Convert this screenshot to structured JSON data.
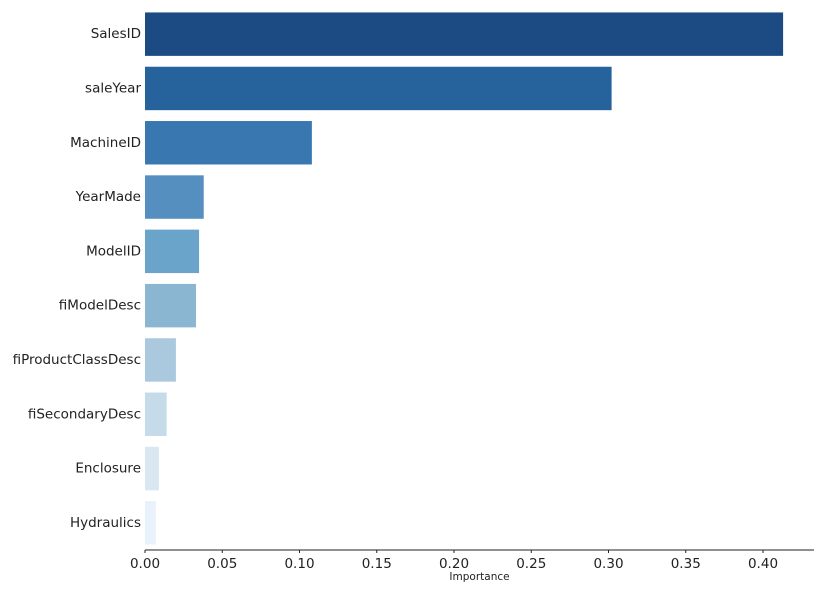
{
  "chart_data": {
    "type": "bar",
    "orientation": "horizontal",
    "categories": [
      "SalesID",
      "saleYear",
      "MachineID",
      "YearMade",
      "ModelID",
      "fiModelDesc",
      "fiProductClassDesc",
      "fiSecondaryDesc",
      "Enclosure",
      "Hydraulics"
    ],
    "values": [
      0.413,
      0.302,
      0.108,
      0.038,
      0.035,
      0.033,
      0.02,
      0.014,
      0.009,
      0.007
    ],
    "xlabel": "Importance",
    "ylabel": "",
    "xlim": [
      0,
      0.433
    ],
    "xticks": [
      0.0,
      0.05,
      0.1,
      0.15,
      0.2,
      0.25,
      0.3,
      0.35,
      0.4
    ],
    "xtick_labels": [
      "0.00",
      "0.05",
      "0.10",
      "0.15",
      "0.20",
      "0.25",
      "0.30",
      "0.35",
      "0.40"
    ],
    "colors": [
      "#1c4a82",
      "#26629b",
      "#3877b0",
      "#548fbf",
      "#6ba4cb",
      "#8bb6d2",
      "#aac9de",
      "#c5dbea",
      "#d9e7f3",
      "#e9f2fa"
    ],
    "grid": false,
    "legend": "none"
  }
}
